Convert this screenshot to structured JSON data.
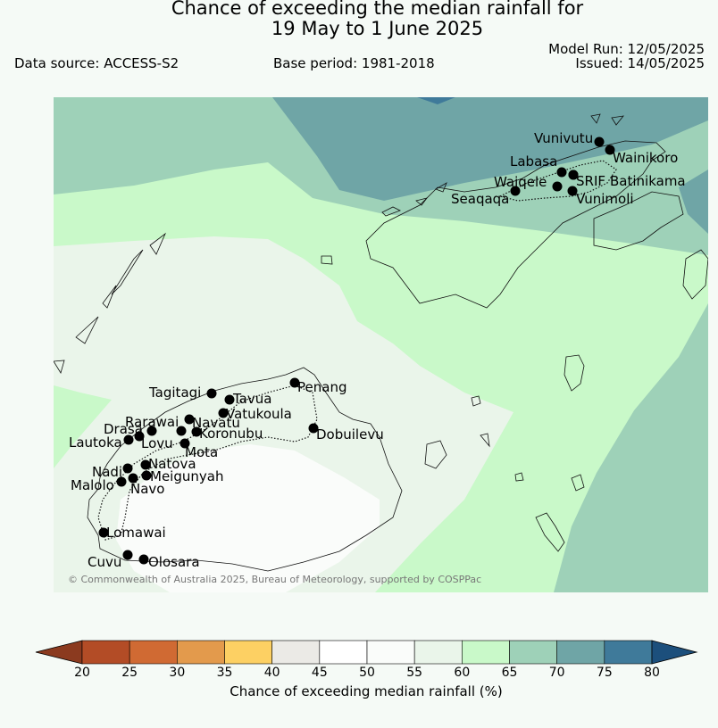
{
  "title": {
    "line1": "Chance of exceeding the median rainfall for",
    "line2": "19 May to 1 June 2025"
  },
  "data_source": "Data source: ACCESS-S2",
  "base_period": "Base period: 1981-2018",
  "model_run": "Model Run: 12/05/2025",
  "issued": "Issued: 14/05/2025",
  "copyright": "© Commonwealth of Australia 2025, Bureau of Meteorology, supported by COSPPac",
  "stations": [
    {
      "name": "Vunivutu"
    },
    {
      "name": "Wainikoro"
    },
    {
      "name": "Labasa"
    },
    {
      "name": "Waiqele"
    },
    {
      "name": "SRIF"
    },
    {
      "name": "Batinikama"
    },
    {
      "name": "Seaqaqa"
    },
    {
      "name": "Vunimoli"
    },
    {
      "name": "Tagitagi"
    },
    {
      "name": "Tavua"
    },
    {
      "name": "Penang"
    },
    {
      "name": "Vatukoula"
    },
    {
      "name": "Rarawai"
    },
    {
      "name": "Navatu"
    },
    {
      "name": "Drasa"
    },
    {
      "name": "Koronubu"
    },
    {
      "name": "Dobuilevu"
    },
    {
      "name": "Lautoka"
    },
    {
      "name": "Lovu"
    },
    {
      "name": "Mota"
    },
    {
      "name": "Natova"
    },
    {
      "name": "Nadi"
    },
    {
      "name": "Meigunyah"
    },
    {
      "name": "Malolo"
    },
    {
      "name": "Navo"
    },
    {
      "name": "Lomawai"
    },
    {
      "name": "Cuvu"
    },
    {
      "name": "Olosara"
    }
  ],
  "colorbar": {
    "label": "Chance of exceeding median rainfall (%)",
    "ticks": [
      "20",
      "25",
      "30",
      "35",
      "40",
      "45",
      "50",
      "55",
      "60",
      "65",
      "70",
      "75",
      "80"
    ],
    "colors": [
      "#8b3a1f",
      "#b34c26",
      "#d06a33",
      "#e39a4c",
      "#fdd063",
      "#ebeae6",
      "#ffffff",
      "#fafcfa",
      "#eaf5ea",
      "#c9f9c9",
      "#9ed1b8",
      "#6fa5a6",
      "#3f7a9a",
      "#1c4f7c"
    ]
  }
}
